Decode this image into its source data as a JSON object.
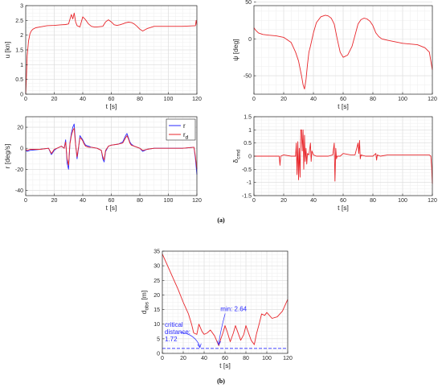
{
  "captions": {
    "a": "(a)",
    "b": "(b)"
  },
  "colors": {
    "red": "#e8262b",
    "blue": "#2a2aff",
    "grid": "#dcdcdc",
    "axis": "#262626"
  },
  "chart_data": [
    {
      "id": "u",
      "type": "line",
      "xlabel": "t [s]",
      "ylabel": "u [kn]",
      "xlim": [
        0,
        120
      ],
      "ylim": [
        0,
        3
      ],
      "xticks": [
        0,
        20,
        40,
        60,
        80,
        100,
        120
      ],
      "yticks": [
        0,
        0.5,
        1,
        1.5,
        2,
        2.5,
        3
      ],
      "ytick_labels": [
        "0",
        "0.5",
        "1",
        "1.5",
        "2",
        "2.5",
        "3"
      ],
      "grid": true,
      "series": [
        {
          "color": "#e8262b",
          "x": [
            0,
            0.5,
            1,
            2,
            3,
            4,
            5,
            7,
            10,
            15,
            20,
            25,
            28,
            30,
            32,
            33,
            34,
            35,
            36,
            38,
            40,
            42,
            44,
            46,
            48,
            50,
            54,
            56,
            58,
            60,
            62,
            64,
            66,
            68,
            70,
            72,
            74,
            76,
            78,
            80,
            82,
            85,
            90,
            100,
            110,
            119,
            119.5,
            120
          ],
          "y": [
            0,
            0.6,
            1.3,
            1.8,
            2.05,
            2.15,
            2.2,
            2.25,
            2.28,
            2.32,
            2.33,
            2.35,
            2.36,
            2.38,
            2.7,
            2.55,
            2.75,
            2.45,
            2.32,
            2.28,
            2.62,
            2.52,
            2.38,
            2.3,
            2.28,
            2.28,
            2.3,
            2.45,
            2.52,
            2.45,
            2.35,
            2.33,
            2.35,
            2.38,
            2.42,
            2.44,
            2.43,
            2.38,
            2.3,
            2.2,
            2.14,
            2.22,
            2.3,
            2.3,
            2.3,
            2.32,
            2.5,
            2.35
          ]
        }
      ]
    },
    {
      "id": "psi",
      "type": "line",
      "xlabel": "t [s]",
      "ylabel": "ψ [deg]",
      "xlim": [
        0,
        120
      ],
      "ylim": [
        -75,
        45
      ],
      "xticks": [
        0,
        20,
        40,
        60,
        80,
        100,
        120
      ],
      "yticks": [
        -50,
        0,
        50
      ],
      "ytick_labels": [
        "-50",
        "0",
        "50"
      ],
      "grid": true,
      "series": [
        {
          "color": "#e8262b",
          "x": [
            0,
            1,
            3,
            6,
            10,
            15,
            20,
            25,
            28,
            30,
            32,
            33,
            34,
            35,
            36,
            37,
            38,
            40,
            42,
            45,
            48,
            50,
            52,
            54,
            56,
            58,
            60,
            63,
            66,
            68,
            70,
            72,
            74,
            76,
            78,
            80,
            82,
            84,
            86,
            90,
            95,
            100,
            105,
            110,
            115,
            118,
            119,
            120
          ],
          "y": [
            15,
            12,
            8,
            6,
            5,
            4,
            2,
            -5,
            -18,
            -30,
            -50,
            -62,
            -68,
            -55,
            -35,
            -18,
            -10,
            8,
            22,
            30,
            32,
            31,
            28,
            20,
            0,
            -18,
            -25,
            -22,
            -10,
            5,
            20,
            26,
            28,
            27,
            24,
            18,
            8,
            3,
            0,
            -2,
            -4,
            -6,
            -7,
            -8,
            -12,
            -18,
            -30,
            -42
          ]
        }
      ]
    },
    {
      "id": "r",
      "type": "line",
      "xlabel": "t [s]",
      "ylabel": "r [deg/s]",
      "xlim": [
        0,
        120
      ],
      "ylim": [
        -45,
        30
      ],
      "xticks": [
        0,
        20,
        40,
        60,
        80,
        100,
        120
      ],
      "yticks": [
        -40,
        -20,
        0,
        20
      ],
      "ytick_labels": [
        "-40",
        "-20",
        "0",
        "20"
      ],
      "grid": true,
      "legend": {
        "position": "top-right",
        "entries": [
          "r",
          "r_d"
        ]
      },
      "series": [
        {
          "name": "r",
          "color": "#2a2aff",
          "x": [
            0,
            1,
            3,
            10,
            16,
            18,
            20,
            22,
            25,
            27,
            28,
            29,
            30,
            31,
            32,
            33,
            34,
            35,
            36,
            37,
            38,
            39,
            40,
            41,
            42,
            44,
            46,
            50,
            53,
            54,
            55,
            56,
            58,
            60,
            65,
            68,
            70,
            71,
            72,
            73,
            74,
            76,
            80,
            82,
            85,
            90,
            100,
            110,
            118,
            119,
            120
          ],
          "y": [
            -2,
            -3,
            -2,
            -1,
            0,
            -6,
            -2,
            0,
            2,
            0,
            8,
            -14,
            -20,
            5,
            14,
            20,
            23,
            4,
            -10,
            0,
            12,
            10,
            8,
            5,
            3,
            2,
            1,
            0,
            -2,
            -10,
            -13,
            -3,
            2,
            3,
            4,
            6,
            12,
            14,
            10,
            6,
            4,
            2,
            0,
            -3,
            -1,
            0,
            0,
            0,
            1,
            -10,
            -25
          ]
        },
        {
          "name": "r_d",
          "color": "#e8262b",
          "x": [
            0,
            1,
            3,
            10,
            16,
            18,
            20,
            22,
            25,
            27,
            28,
            29,
            30,
            31,
            32,
            33,
            34,
            35,
            36,
            37,
            38,
            39,
            40,
            41,
            42,
            44,
            46,
            50,
            53,
            54,
            55,
            56,
            58,
            60,
            65,
            68,
            70,
            71,
            72,
            73,
            74,
            76,
            80,
            82,
            85,
            90,
            100,
            110,
            118,
            119,
            120
          ],
          "y": [
            -1,
            -2,
            -1,
            -1,
            0,
            -5,
            -1,
            0,
            2,
            0,
            6,
            -10,
            -16,
            4,
            12,
            17,
            19,
            3,
            -8,
            1,
            10,
            9,
            7,
            4,
            2,
            1,
            1,
            0,
            -2,
            -8,
            -11,
            -2,
            2,
            3,
            4,
            5,
            10,
            12,
            9,
            5,
            3,
            2,
            0,
            -2,
            -1,
            0,
            0,
            0,
            1,
            -8,
            -20
          ]
        }
      ]
    },
    {
      "id": "delta",
      "type": "line",
      "xlabel": "t [s]",
      "ylabel": "δ_cmd",
      "xlim": [
        0,
        120
      ],
      "ylim": [
        -1.5,
        1.5
      ],
      "xticks": [
        0,
        20,
        40,
        60,
        80,
        100,
        120
      ],
      "yticks": [
        -1.5,
        -1,
        -0.5,
        0,
        0.5,
        1,
        1.5
      ],
      "ytick_labels": [
        "-1.5",
        "-1",
        "-0.5",
        "0",
        "0.5",
        "1",
        "1.5"
      ],
      "grid": true,
      "series": [
        {
          "color": "#e8262b",
          "x": [
            0,
            5,
            10,
            15,
            17,
            17.5,
            18,
            20,
            25,
            28,
            28.5,
            29,
            29.5,
            30,
            30.5,
            31,
            31.5,
            32,
            32.5,
            33,
            33.5,
            34,
            34.5,
            35,
            35.5,
            36,
            37,
            38,
            38.5,
            39,
            40,
            42,
            45,
            50,
            53,
            54,
            54.5,
            55,
            55.5,
            56,
            58,
            60,
            65,
            68,
            70,
            70.5,
            71,
            71.5,
            72,
            75,
            80,
            82,
            82.5,
            83,
            85,
            90,
            95,
            100,
            105,
            110,
            115,
            118,
            119,
            119.5,
            120
          ],
          "y": [
            0,
            0,
            0,
            0,
            0,
            -0.35,
            0,
            0.05,
            0,
            0,
            0.5,
            -0.7,
            0.55,
            -0.9,
            0.3,
            -0.8,
            1.0,
            1.0,
            0.2,
            1.0,
            -0.5,
            0.8,
            -0.2,
            0.3,
            -0.3,
            0.1,
            0.05,
            0.5,
            -0.2,
            0.2,
            0.05,
            0,
            0,
            0,
            0.05,
            0.5,
            -0.95,
            0.3,
            -0.1,
            0,
            0,
            0.1,
            0.05,
            0.05,
            0.5,
            0.1,
            0.6,
            -0.1,
            0.05,
            0,
            0,
            0.1,
            -0.15,
            0.05,
            0,
            0.05,
            0.05,
            0.05,
            0.05,
            0.05,
            0.05,
            0.05,
            0,
            -0.4,
            -1.05
          ]
        }
      ]
    },
    {
      "id": "dobs",
      "type": "line",
      "xlabel": "t [s]",
      "ylabel": "d_obs [m]",
      "xlim": [
        0,
        120
      ],
      "ylim": [
        0,
        35
      ],
      "xticks": [
        0,
        20,
        40,
        60,
        80,
        100,
        120
      ],
      "yticks": [
        0,
        5,
        10,
        15,
        20,
        25,
        30,
        35
      ],
      "ytick_labels": [
        "0",
        "5",
        "10",
        "15",
        "20",
        "25",
        "30",
        "35"
      ],
      "grid": true,
      "annotations": [
        {
          "text": "min: 2.64",
          "x": 54,
          "y": 2.64
        },
        {
          "text_lines": [
            "critical",
            "distance:",
            "1.72"
          ],
          "x": 36,
          "y": 1.72
        }
      ],
      "series": [
        {
          "color": "#e8262b",
          "x": [
            0,
            5,
            10,
            15,
            20,
            25,
            28,
            30,
            33,
            35,
            38,
            40,
            43,
            46,
            50,
            54,
            56,
            58,
            60,
            62,
            65,
            68,
            70,
            72,
            75,
            78,
            80,
            85,
            88,
            90,
            93,
            95,
            98,
            100,
            105,
            110,
            115,
            120
          ],
          "y": [
            34,
            30,
            26,
            22,
            17.5,
            13.5,
            10,
            7,
            6.5,
            10,
            7.5,
            6.5,
            7,
            8,
            6,
            2.64,
            5,
            7,
            9.5,
            7.5,
            4,
            7,
            9.5,
            7.5,
            4.5,
            6.5,
            9.5,
            4.5,
            3,
            6.5,
            10.5,
            13.5,
            13,
            14,
            12,
            12.5,
            14.5,
            18.5
          ]
        },
        {
          "color": "#2a2aff",
          "style": "dashed",
          "x": [
            0,
            120
          ],
          "y": [
            1.72,
            1.72
          ]
        }
      ]
    }
  ]
}
